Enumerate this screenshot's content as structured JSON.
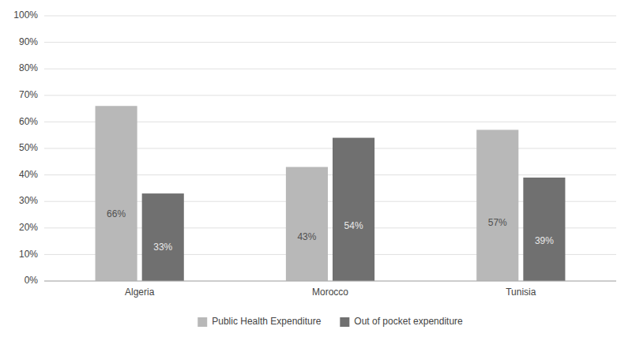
{
  "chart_data": {
    "type": "bar",
    "categories": [
      "Algeria",
      "Morocco",
      "Tunisia"
    ],
    "series": [
      {
        "name": "Public Health Expenditure",
        "color": "#b8b8b8",
        "values": [
          66,
          43,
          57
        ],
        "value_labels": [
          "66%",
          "43%",
          "57%"
        ]
      },
      {
        "name": "Out of pocket expenditure",
        "color": "#707070",
        "values": [
          33,
          54,
          39
        ],
        "value_labels": [
          "33%",
          "54%",
          "39%"
        ]
      }
    ],
    "ylim": [
      0,
      100
    ],
    "yticks": [
      {
        "value": 0,
        "label": "0%"
      },
      {
        "value": 10,
        "label": "10%"
      },
      {
        "value": 20,
        "label": "20%"
      },
      {
        "value": 30,
        "label": "30%"
      },
      {
        "value": 40,
        "label": "40%"
      },
      {
        "value": 50,
        "label": "50%"
      },
      {
        "value": 60,
        "label": "60%"
      },
      {
        "value": 70,
        "label": "70%"
      },
      {
        "value": 80,
        "label": "80%"
      },
      {
        "value": 90,
        "label": "90%"
      },
      {
        "value": 100,
        "label": "100%"
      }
    ],
    "grid": true,
    "legend": "bottom",
    "data_labels": true
  }
}
